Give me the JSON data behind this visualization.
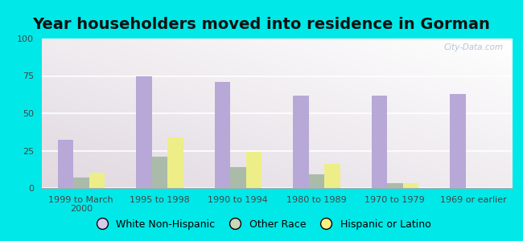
{
  "title": "Year householders moved into residence in Gorman",
  "categories": [
    "1999 to March\n2000",
    "1995 to 1998",
    "1990 to 1994",
    "1980 to 1989",
    "1970 to 1979",
    "1969 or earlier"
  ],
  "white_non_hispanic": [
    32,
    75,
    71,
    62,
    62,
    63
  ],
  "other_race": [
    7,
    21,
    14,
    9,
    3,
    0
  ],
  "hispanic_or_latino": [
    10,
    34,
    24,
    16,
    3,
    0
  ],
  "bar_colors": {
    "white_non_hispanic": "#b8a8d8",
    "other_race": "#aabbaa",
    "hispanic_or_latino": "#eeee88"
  },
  "legend_colors": {
    "white_non_hispanic": "#d8c8ee",
    "other_race": "#c8d8b8",
    "hispanic_or_latino": "#f5f080"
  },
  "ylim": [
    0,
    100
  ],
  "yticks": [
    0,
    25,
    50,
    75,
    100
  ],
  "figure_bg": "#00e8e8",
  "title_fontsize": 14,
  "tick_fontsize": 8,
  "legend_fontsize": 9,
  "watermark": "City-Data.com"
}
